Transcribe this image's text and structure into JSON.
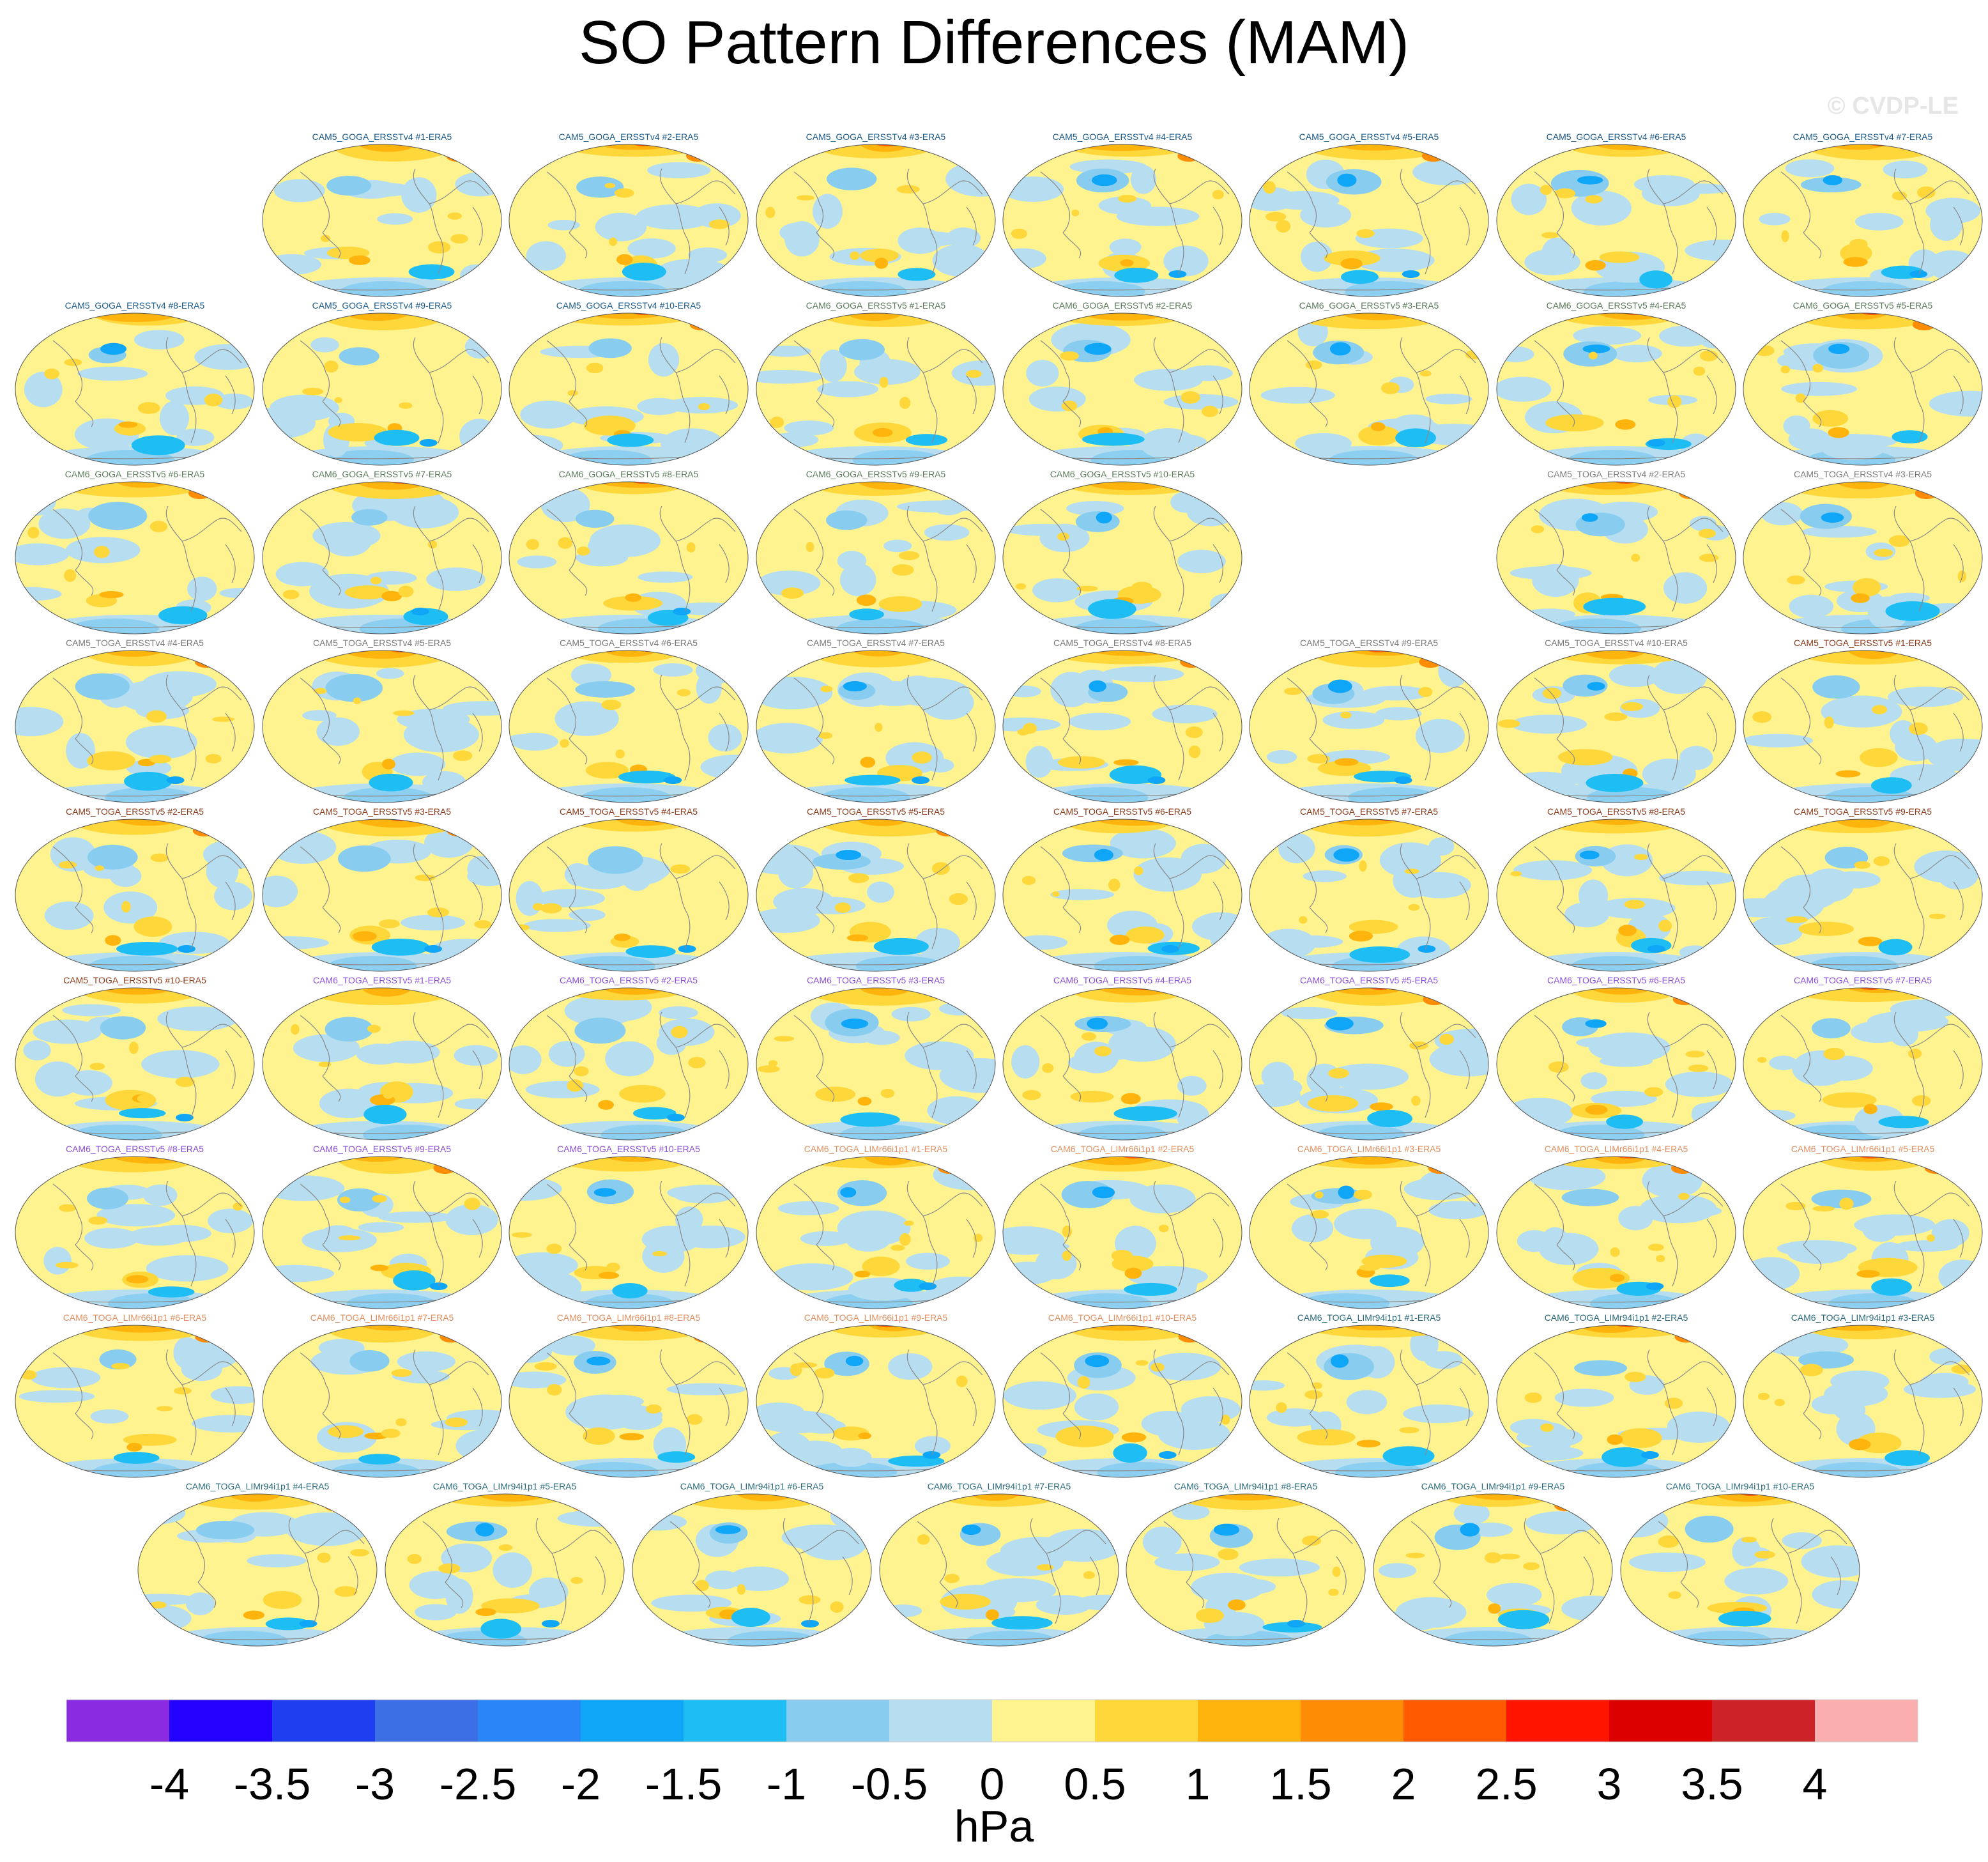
{
  "chart_data": {
    "type": "heatmap",
    "title": "SO Pattern Differences (MAM)",
    "subtitle": "",
    "copyright": "© CVDP-LE",
    "projection_note": "global robinson maps",
    "colorbar": {
      "units": "hPa",
      "levels": [
        -4,
        -3.5,
        -3,
        -2.5,
        -2,
        -1.5,
        -1,
        -0.5,
        0,
        0.5,
        1,
        1.5,
        2,
        2.5,
        3,
        3.5,
        4
      ],
      "tick_labels": [
        "-4",
        "-3.5",
        "-3",
        "-2.5",
        "-2",
        "-1.5",
        "-1",
        "-0.5",
        "0",
        "0.5",
        "1",
        "1.5",
        "2",
        "2.5",
        "3",
        "3.5",
        "4"
      ],
      "colors": [
        "#8a2be2",
        "#2400ff",
        "#1e3ef0",
        "#3c6ee6",
        "#2a86f7",
        "#0fa6f8",
        "#1ebef5",
        "#88cdef",
        "#b6def0",
        "#fef38f",
        "#fed73a",
        "#ffb40d",
        "#ff8c05",
        "#ff5a00",
        "#ff1400",
        "#dc0000",
        "#cd2328",
        "#fbaeae"
      ]
    },
    "panels": [
      {
        "label": "CAM5_GOGA_ERSSTv4 #1-ERA5",
        "color": "#1a5a8a"
      },
      {
        "label": "CAM5_GOGA_ERSSTv4 #2-ERA5",
        "color": "#1a5a8a"
      },
      {
        "label": "CAM5_GOGA_ERSSTv4 #3-ERA5",
        "color": "#1a5a8a"
      },
      {
        "label": "CAM5_GOGA_ERSSTv4 #4-ERA5",
        "color": "#1a5a8a"
      },
      {
        "label": "CAM5_GOGA_ERSSTv4 #5-ERA5",
        "color": "#1a5a8a"
      },
      {
        "label": "CAM5_GOGA_ERSSTv4 #6-ERA5",
        "color": "#1a5a8a"
      },
      {
        "label": "CAM5_GOGA_ERSSTv4 #7-ERA5",
        "color": "#1a5a8a"
      },
      {
        "label": "CAM5_GOGA_ERSSTv4 #8-ERA5",
        "color": "#1a5a8a"
      },
      {
        "label": "CAM5_GOGA_ERSSTv4 #9-ERA5",
        "color": "#1a5a8a"
      },
      {
        "label": "CAM5_GOGA_ERSSTv4 #10-ERA5",
        "color": "#1a5a8a"
      },
      {
        "label": "CAM6_GOGA_ERSSTv5 #1-ERA5",
        "color": "#5a7a5a"
      },
      {
        "label": "CAM6_GOGA_ERSSTv5 #2-ERA5",
        "color": "#5a7a5a"
      },
      {
        "label": "CAM6_GOGA_ERSSTv5 #3-ERA5",
        "color": "#5a7a5a"
      },
      {
        "label": "CAM6_GOGA_ERSSTv5 #4-ERA5",
        "color": "#5a7a5a"
      },
      {
        "label": "CAM6_GOGA_ERSSTv5 #5-ERA5",
        "color": "#5a7a5a"
      },
      {
        "label": "CAM6_GOGA_ERSSTv5 #6-ERA5",
        "color": "#5a7a5a"
      },
      {
        "label": "CAM6_GOGA_ERSSTv5 #7-ERA5",
        "color": "#5a7a5a"
      },
      {
        "label": "CAM6_GOGA_ERSSTv5 #8-ERA5",
        "color": "#5a7a5a"
      },
      {
        "label": "CAM6_GOGA_ERSSTv5 #9-ERA5",
        "color": "#5a7a5a"
      },
      {
        "label": "CAM6_GOGA_ERSSTv5 #10-ERA5",
        "color": "#5a7a5a"
      },
      {
        "label": "",
        "color": "#ffffff"
      },
      {
        "label": "CAM5_TOGA_ERSSTv4 #2-ERA5",
        "color": "#7a7a7a"
      },
      {
        "label": "CAM5_TOGA_ERSSTv4 #3-ERA5",
        "color": "#7a7a7a"
      },
      {
        "label": "CAM5_TOGA_ERSSTv4 #4-ERA5",
        "color": "#7a7a7a"
      },
      {
        "label": "CAM5_TOGA_ERSSTv4 #5-ERA5",
        "color": "#7a7a7a"
      },
      {
        "label": "CAM5_TOGA_ERSSTv4 #6-ERA5",
        "color": "#7a7a7a"
      },
      {
        "label": "CAM5_TOGA_ERSSTv4 #7-ERA5",
        "color": "#7a7a7a"
      },
      {
        "label": "CAM5_TOGA_ERSSTv4 #8-ERA5",
        "color": "#7a7a7a"
      },
      {
        "label": "CAM5_TOGA_ERSSTv4 #9-ERA5",
        "color": "#7a7a7a"
      },
      {
        "label": "CAM5_TOGA_ERSSTv4 #10-ERA5",
        "color": "#7a7a7a"
      },
      {
        "label": "CAM5_TOGA_ERSSTv5 #1-ERA5",
        "color": "#8b3a1a"
      },
      {
        "label": "CAM5_TOGA_ERSSTv5 #2-ERA5",
        "color": "#8b3a1a"
      },
      {
        "label": "CAM5_TOGA_ERSSTv5 #3-ERA5",
        "color": "#8b3a1a"
      },
      {
        "label": "CAM5_TOGA_ERSSTv5 #4-ERA5",
        "color": "#8b3a1a"
      },
      {
        "label": "CAM5_TOGA_ERSSTv5 #5-ERA5",
        "color": "#8b3a1a"
      },
      {
        "label": "CAM5_TOGA_ERSSTv5 #6-ERA5",
        "color": "#8b3a1a"
      },
      {
        "label": "CAM5_TOGA_ERSSTv5 #7-ERA5",
        "color": "#8b3a1a"
      },
      {
        "label": "CAM5_TOGA_ERSSTv5 #8-ERA5",
        "color": "#8b3a1a"
      },
      {
        "label": "CAM5_TOGA_ERSSTv5 #9-ERA5",
        "color": "#8b3a1a"
      },
      {
        "label": "CAM5_TOGA_ERSSTv5 #10-ERA5",
        "color": "#8b3a1a"
      },
      {
        "label": "CAM6_TOGA_ERSSTv5 #1-ERA5",
        "color": "#8a4fd6"
      },
      {
        "label": "CAM6_TOGA_ERSSTv5 #2-ERA5",
        "color": "#8a4fd6"
      },
      {
        "label": "CAM6_TOGA_ERSSTv5 #3-ERA5",
        "color": "#8a4fd6"
      },
      {
        "label": "CAM6_TOGA_ERSSTv5 #4-ERA5",
        "color": "#8a4fd6"
      },
      {
        "label": "CAM6_TOGA_ERSSTv5 #5-ERA5",
        "color": "#8a4fd6"
      },
      {
        "label": "CAM6_TOGA_ERSSTv5 #6-ERA5",
        "color": "#8a4fd6"
      },
      {
        "label": "CAM6_TOGA_ERSSTv5 #7-ERA5",
        "color": "#8a4fd6"
      },
      {
        "label": "CAM6_TOGA_ERSSTv5 #8-ERA5",
        "color": "#8a4fd6"
      },
      {
        "label": "CAM6_TOGA_ERSSTv5 #9-ERA5",
        "color": "#8a4fd6"
      },
      {
        "label": "CAM6_TOGA_ERSSTv5 #10-ERA5",
        "color": "#8a4fd6"
      },
      {
        "label": "CAM6_TOGA_LIMr66i1p1 #1-ERA5",
        "color": "#e09060"
      },
      {
        "label": "CAM6_TOGA_LIMr66i1p1 #2-ERA5",
        "color": "#e09060"
      },
      {
        "label": "CAM6_TOGA_LIMr66i1p1 #3-ERA5",
        "color": "#e09060"
      },
      {
        "label": "CAM6_TOGA_LIMr66i1p1 #4-ERA5",
        "color": "#e09060"
      },
      {
        "label": "CAM6_TOGA_LIMr66i1p1 #5-ERA5",
        "color": "#e09060"
      },
      {
        "label": "CAM6_TOGA_LIMr66i1p1 #6-ERA5",
        "color": "#e09060"
      },
      {
        "label": "CAM6_TOGA_LIMr66i1p1 #7-ERA5",
        "color": "#e09060"
      },
      {
        "label": "CAM6_TOGA_LIMr66i1p1 #8-ERA5",
        "color": "#e09060"
      },
      {
        "label": "CAM6_TOGA_LIMr66i1p1 #9-ERA5",
        "color": "#e09060"
      },
      {
        "label": "CAM6_TOGA_LIMr66i1p1 #10-ERA5",
        "color": "#e09060"
      },
      {
        "label": "CAM6_TOGA_LIMr94i1p1 #1-ERA5",
        "color": "#2a6a7a"
      },
      {
        "label": "CAM6_TOGA_LIMr94i1p1 #2-ERA5",
        "color": "#2a6a7a"
      },
      {
        "label": "CAM6_TOGA_LIMr94i1p1 #3-ERA5",
        "color": "#2a6a7a"
      },
      {
        "label": "CAM6_TOGA_LIMr94i1p1 #4-ERA5",
        "color": "#2a6a7a"
      },
      {
        "label": "CAM6_TOGA_LIMr94i1p1 #5-ERA5",
        "color": "#2a6a7a"
      },
      {
        "label": "CAM6_TOGA_LIMr94i1p1 #6-ERA5",
        "color": "#2a6a7a"
      },
      {
        "label": "CAM6_TOGA_LIMr94i1p1 #7-ERA5",
        "color": "#2a6a7a"
      },
      {
        "label": "CAM6_TOGA_LIMr94i1p1 #8-ERA5",
        "color": "#2a6a7a"
      },
      {
        "label": "CAM6_TOGA_LIMr94i1p1 #9-ERA5",
        "color": "#2a6a7a"
      },
      {
        "label": "CAM6_TOGA_LIMr94i1p1 #10-ERA5",
        "color": "#2a6a7a"
      }
    ]
  }
}
